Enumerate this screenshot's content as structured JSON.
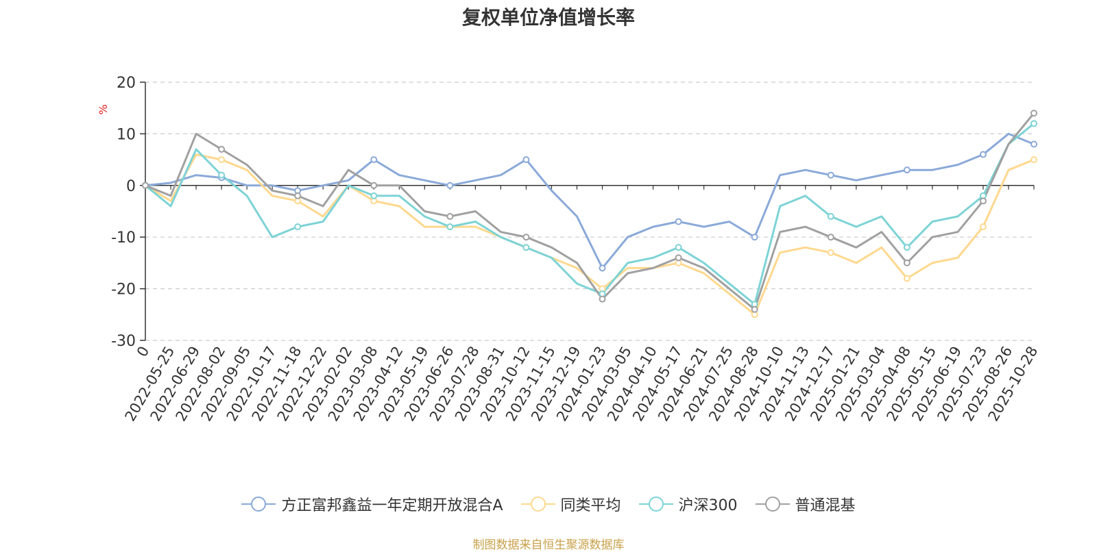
{
  "chart_data": {
    "type": "line",
    "title": "复权单位净值增长率",
    "ylabel": "%",
    "ylim": [
      -30,
      20
    ],
    "yticks": [
      20,
      10,
      0,
      -10,
      -20,
      -30
    ],
    "ytick_labels": [
      "20",
      "10",
      "0",
      "-10",
      "-20",
      "-30"
    ],
    "x_labels": [
      "0",
      "2022-05-25",
      "2022-06-29",
      "2022-08-02",
      "2022-09-05",
      "2022-10-17",
      "2022-11-18",
      "2022-12-22",
      "2023-02-02",
      "2023-03-08",
      "2023-04-12",
      "2023-05-19",
      "2023-06-26",
      "2023-07-28",
      "2023-08-31",
      "2023-10-12",
      "2023-11-15",
      "2023-12-19",
      "2024-01-23",
      "2024-03-05",
      "2024-04-10",
      "2024-05-17",
      "2024-06-21",
      "2024-07-25",
      "2024-08-28",
      "2024-10-10",
      "2024-11-13",
      "2024-12-17",
      "2025-01-21",
      "2025-03-04",
      "2025-04-08",
      "2025-05-15",
      "2025-06-19",
      "2025-07-23",
      "2025-08-26",
      "2025-10-28"
    ],
    "grid": "dashed horizontal",
    "legend": "bottom-center",
    "series": [
      {
        "name": "方正富邦鑫益一年定期开放混合A",
        "color": "#8aa9d8",
        "values": [
          0,
          0.5,
          2,
          1.5,
          0,
          0,
          -1,
          0,
          1,
          5,
          2,
          1,
          0,
          1,
          2,
          5,
          -1,
          -6,
          -16,
          -10,
          -8,
          -7,
          -8,
          -7,
          -10,
          2,
          3,
          2,
          1,
          2,
          3,
          3,
          4,
          6,
          10,
          8
        ]
      },
      {
        "name": "同类平均",
        "color": "#ffd88e",
        "values": [
          0,
          -3,
          6,
          5,
          3,
          -2,
          -3,
          -6,
          0,
          -3,
          -4,
          -8,
          -8,
          -8,
          -10,
          -12,
          -14,
          -16,
          -20,
          -16,
          -16,
          -15,
          -17,
          -21,
          -25,
          -13,
          -12,
          -13,
          -15,
          -12,
          -18,
          -15,
          -14,
          -8,
          3,
          5
        ]
      },
      {
        "name": "沪深300",
        "color": "#7dd3d6",
        "values": [
          0,
          -4,
          7,
          2,
          -2,
          -10,
          -8,
          -7,
          0,
          -2,
          -2,
          -6,
          -8,
          -7,
          -10,
          -12,
          -14,
          -19,
          -21,
          -15,
          -14,
          -12,
          -15,
          -19,
          -23,
          -4,
          -2,
          -6,
          -8,
          -6,
          -12,
          -7,
          -6,
          -2,
          8,
          12
        ]
      },
      {
        "name": "普通混基",
        "color": "#a0a0a0",
        "values": [
          0,
          -2,
          10,
          7,
          4,
          -1,
          -2,
          -4,
          3,
          0,
          0,
          -5,
          -6,
          -5,
          -9,
          -10,
          -12,
          -15,
          -22,
          -17,
          -16,
          -14,
          -16,
          -20,
          -24,
          -9,
          -8,
          -10,
          -12,
          -9,
          -15,
          -10,
          -9,
          -3,
          8,
          14
        ]
      }
    ],
    "source_note": "制图数据来自恒生聚源数据库",
    "source_color": "#c8a14a",
    "ylabel_color": "#e02020"
  }
}
